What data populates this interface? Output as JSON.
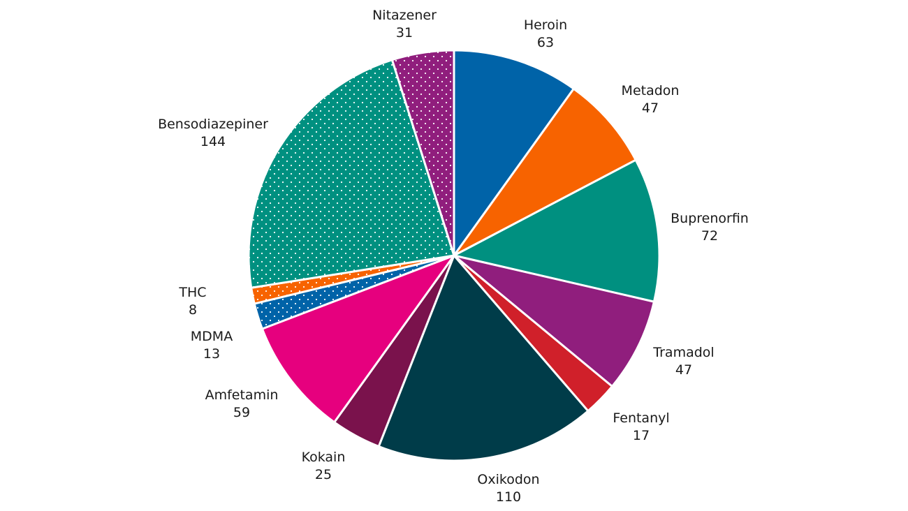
{
  "chart_data": {
    "type": "pie",
    "title": "",
    "start_angle_deg": 0,
    "direction": "clockwise",
    "slices": [
      {
        "label": "Heroin",
        "value": 63,
        "color": "#0063a8",
        "pattern": "none"
      },
      {
        "label": "Metadon",
        "value": 47,
        "color": "#f76300",
        "pattern": "none"
      },
      {
        "label": "Buprenorfin",
        "value": 72,
        "color": "#009080",
        "pattern": "none"
      },
      {
        "label": "Tramadol",
        "value": 47,
        "color": "#901e7d",
        "pattern": "none"
      },
      {
        "label": "Fentanyl",
        "value": 17,
        "color": "#d0202a",
        "pattern": "none"
      },
      {
        "label": "Oxikodon",
        "value": 110,
        "color": "#003c49",
        "pattern": "none"
      },
      {
        "label": "Kokain",
        "value": 25,
        "color": "#7a124c",
        "pattern": "none"
      },
      {
        "label": "Amfetamin",
        "value": 59,
        "color": "#e6007e",
        "pattern": "none"
      },
      {
        "label": "MDMA",
        "value": 13,
        "color": "#0063a8",
        "pattern": "dots"
      },
      {
        "label": "THC",
        "value": 8,
        "color": "#f76300",
        "pattern": "dots"
      },
      {
        "label": "Bensodiazepiner",
        "value": 144,
        "color": "#009080",
        "pattern": "dots"
      },
      {
        "label": "Nitazener",
        "value": 31,
        "color": "#901e7d",
        "pattern": "dots"
      }
    ]
  }
}
